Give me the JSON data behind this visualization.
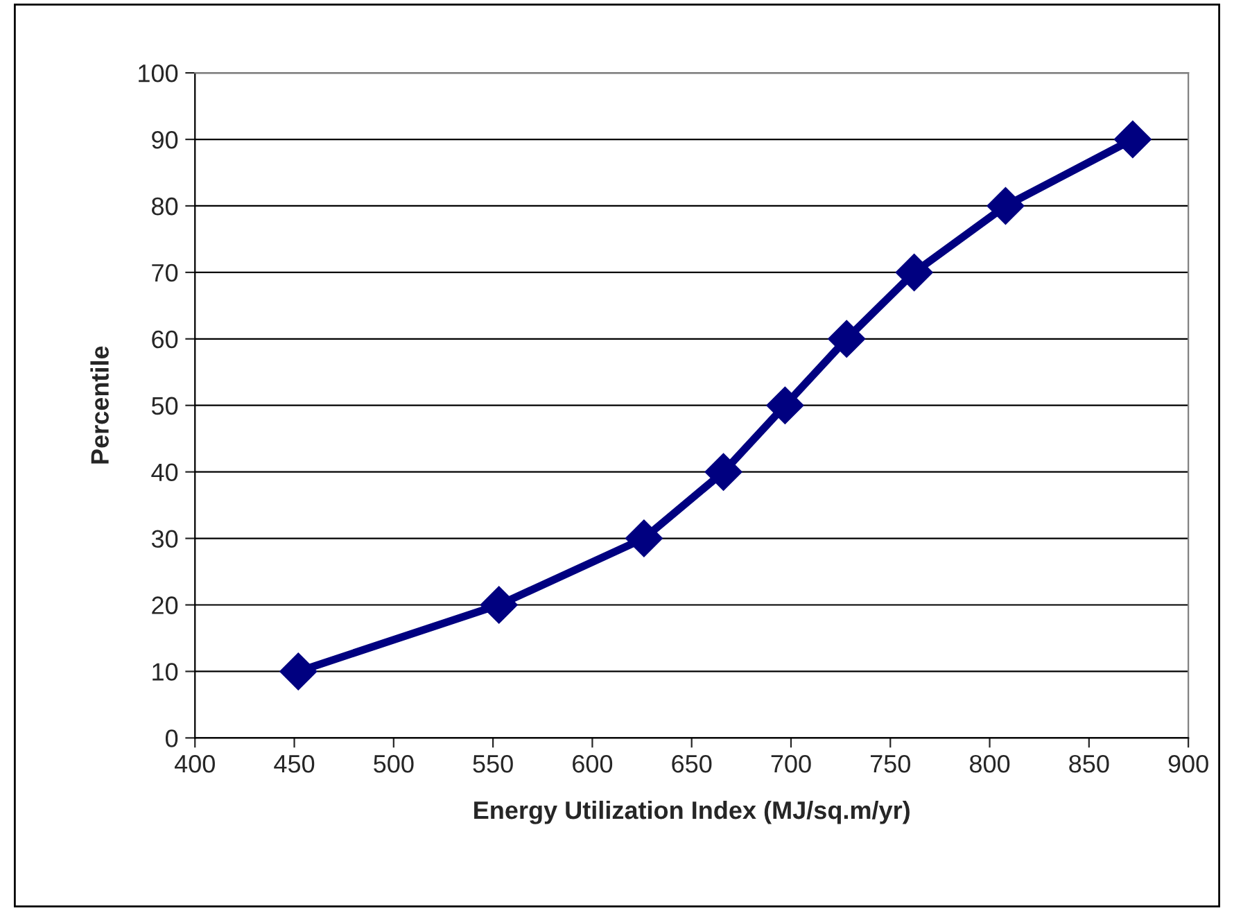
{
  "chart_data": {
    "type": "line",
    "xlabel": "Energy Utilization Index (MJ/sq.m/yr)",
    "ylabel": "Percentile",
    "x": [
      452,
      553,
      626,
      666,
      697,
      728,
      762,
      808,
      872
    ],
    "series": [
      {
        "color": "#000080",
        "values": [
          10,
          20,
          30,
          40,
          50,
          60,
          70,
          80,
          90
        ]
      }
    ],
    "xlim": [
      400,
      900
    ],
    "xticks": [
      400,
      450,
      500,
      550,
      600,
      650,
      700,
      750,
      800,
      850,
      900
    ],
    "ylim": [
      0,
      100
    ],
    "yticks": [
      0,
      10,
      20,
      30,
      40,
      50,
      60,
      70,
      80,
      90,
      100
    ],
    "grid": "y",
    "marker": "diamond",
    "line_style": "solid"
  }
}
